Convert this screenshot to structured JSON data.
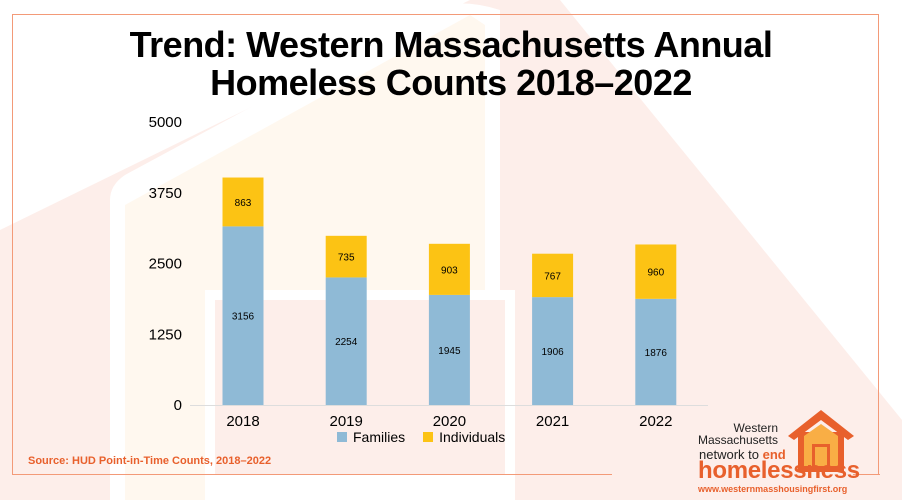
{
  "title_line1": "Trend: Western Massachusetts Annual",
  "title_line2": "Homeless Counts 2018–2022",
  "source": "Source: HUD Point-in-Time Counts, 2018–2022",
  "logo": {
    "line1": "Western",
    "line2": "Massachusetts",
    "line3a": "network to ",
    "line3b": "end",
    "line4": "homelessness",
    "url": "www.westernmasshousingfirst.org"
  },
  "colors": {
    "families": "#8fbad6",
    "individuals": "#fcc314",
    "accent": "#e8602c"
  },
  "chart_data": {
    "type": "stacked-bar",
    "categories": [
      "2018",
      "2019",
      "2020",
      "2021",
      "2022"
    ],
    "series": [
      {
        "name": "Families",
        "values": [
          3156,
          2254,
          1945,
          1906,
          1876
        ]
      },
      {
        "name": "Individuals",
        "values": [
          863,
          735,
          903,
          767,
          960
        ]
      }
    ],
    "yticks": [
      "0",
      "1250",
      "2500",
      "3750",
      "5000"
    ],
    "ylim": [
      0,
      5000
    ],
    "grid": false,
    "legend": "bottom"
  }
}
